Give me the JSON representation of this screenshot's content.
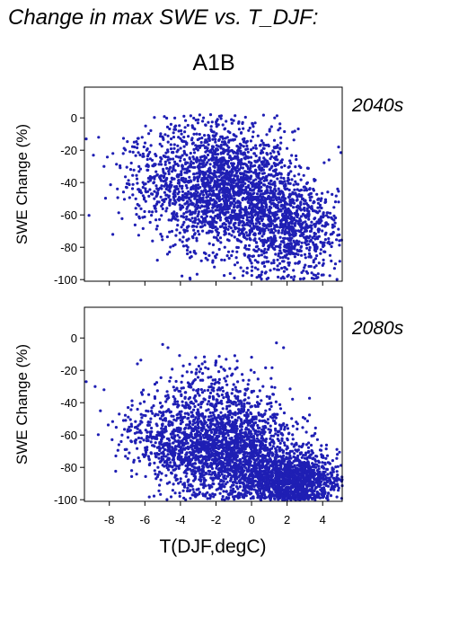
{
  "page": {
    "title": "Change in max SWE vs. T_DJF:",
    "scenario": "A1B",
    "xlabel": "T(DJF,degC)"
  },
  "colors": {
    "points": "#1f1fb4",
    "frame": "#000000",
    "panel_label": "#2323b2"
  },
  "chart_data": [
    {
      "type": "scatter",
      "name": "2040s",
      "label": "2040s",
      "xlabel": "T(DJF,degC)",
      "ylabel": "SWE Change (%)",
      "xlim": [
        -9.4,
        5.1
      ],
      "ylim": [
        -101,
        19
      ],
      "xticks": [
        -8,
        -6,
        -4,
        -2,
        0,
        2,
        4
      ],
      "yticks": [
        0,
        -20,
        -40,
        -60,
        -80,
        -100
      ],
      "show_xtick_labels": false,
      "grid": false,
      "point_count_estimate": 3000,
      "clusters": [
        {
          "cx": -1.5,
          "cy": -45,
          "sx": 1.9,
          "sy": 18,
          "n": 1800
        },
        {
          "cx": 2.0,
          "cy": -68,
          "sx": 1.5,
          "sy": 16,
          "n": 900
        },
        {
          "cx": -5.0,
          "cy": -35,
          "sx": 1.4,
          "sy": 13,
          "n": 220
        },
        {
          "cx": -2.2,
          "cy": -12,
          "sx": 1.6,
          "sy": 7,
          "n": 140
        }
      ],
      "notable_points": [
        {
          "x": -9.3,
          "y": -13
        },
        {
          "x": -8.6,
          "y": -12
        },
        {
          "x": -8.3,
          "y": -30
        },
        {
          "x": -7.8,
          "y": -22
        },
        {
          "x": -6.6,
          "y": -15
        },
        {
          "x": -2.3,
          "y": 2
        },
        {
          "x": -1.8,
          "y": 1
        },
        {
          "x": -3.8,
          "y": 1
        },
        {
          "x": 1.3,
          "y": 0
        },
        {
          "x": 4.9,
          "y": -18
        },
        {
          "x": 4.9,
          "y": -52
        },
        {
          "x": -6.3,
          "y": -62
        },
        {
          "x": -5.3,
          "y": -88
        },
        {
          "x": 3.5,
          "y": -97
        }
      ]
    },
    {
      "type": "scatter",
      "name": "2080s",
      "label": "2080s",
      "xlabel": "T(DJF,degC)",
      "ylabel": "SWE Change (%)",
      "xlim": [
        -9.4,
        5.1
      ],
      "ylim": [
        -101,
        19
      ],
      "xticks": [
        -8,
        -6,
        -4,
        -2,
        0,
        2,
        4
      ],
      "yticks": [
        0,
        -20,
        -40,
        -60,
        -80,
        -100
      ],
      "show_xtick_labels": true,
      "grid": false,
      "point_count_estimate": 4000,
      "clusters": [
        {
          "cx": -1.5,
          "cy": -68,
          "sx": 1.9,
          "sy": 15,
          "n": 2000
        },
        {
          "cx": 2.3,
          "cy": -88,
          "sx": 1.3,
          "sy": 8,
          "n": 1300
        },
        {
          "cx": -4.8,
          "cy": -62,
          "sx": 1.3,
          "sy": 12,
          "n": 320
        },
        {
          "cx": -2.8,
          "cy": -32,
          "sx": 1.4,
          "sy": 10,
          "n": 180
        }
      ],
      "notable_points": [
        {
          "x": -9.3,
          "y": -27
        },
        {
          "x": -8.8,
          "y": -30
        },
        {
          "x": -8.3,
          "y": -32
        },
        {
          "x": -5.0,
          "y": -4
        },
        {
          "x": -4.7,
          "y": -6
        },
        {
          "x": 1.4,
          "y": -3
        },
        {
          "x": 1.8,
          "y": -6
        },
        {
          "x": 1.1,
          "y": -25
        },
        {
          "x": -8.5,
          "y": -45
        },
        {
          "x": 4.9,
          "y": -87
        },
        {
          "x": 4.3,
          "y": -77
        },
        {
          "x": 3.4,
          "y": -70
        }
      ]
    }
  ]
}
